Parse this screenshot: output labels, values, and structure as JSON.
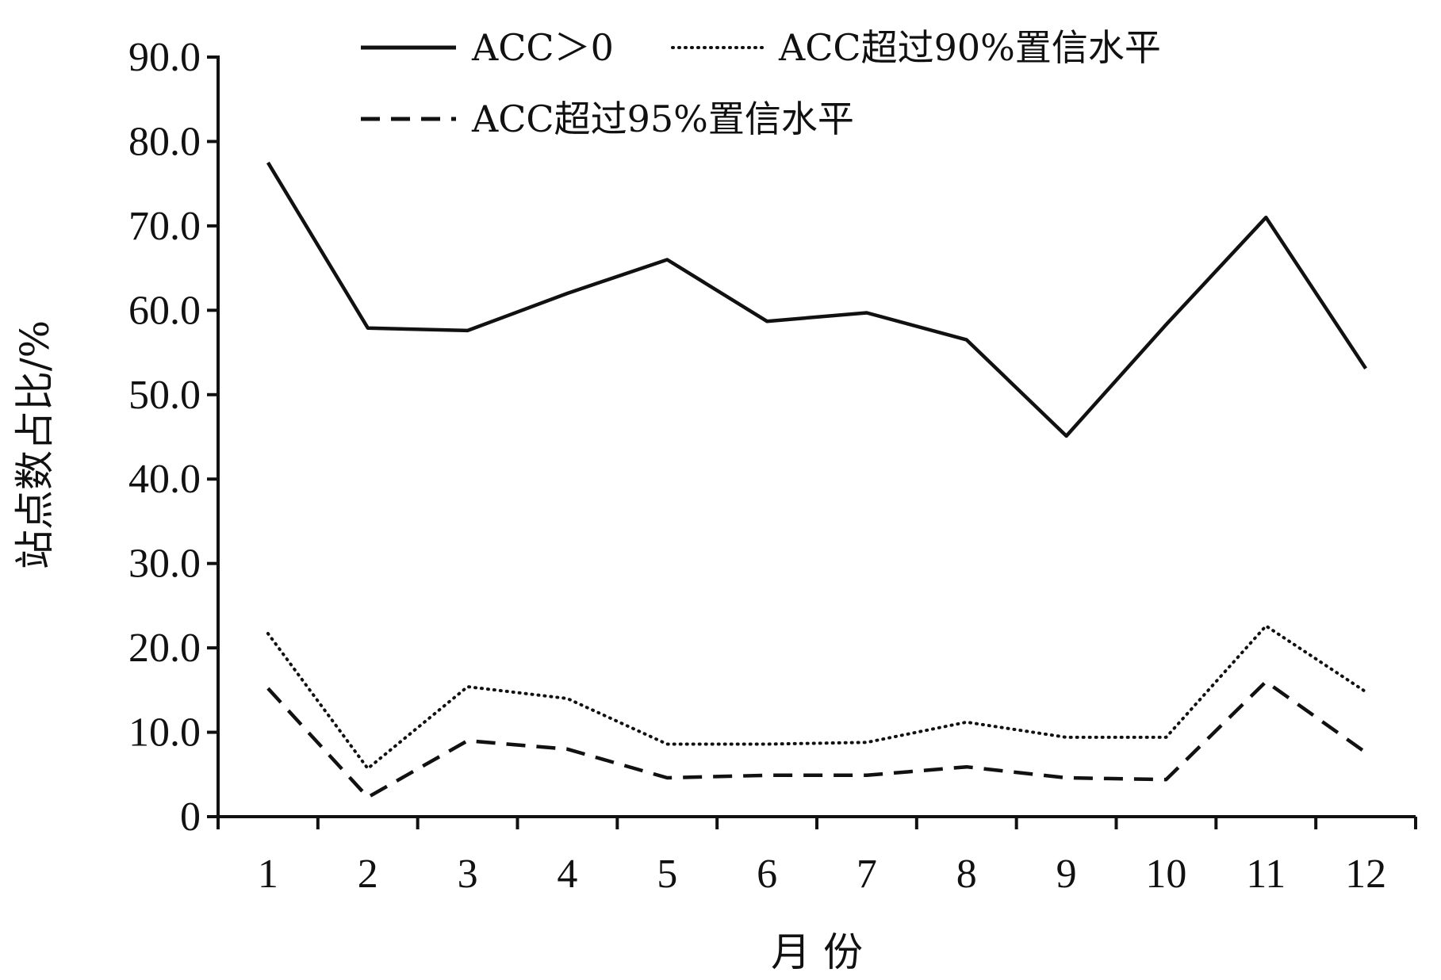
{
  "chart_data": {
    "type": "line",
    "xlabel": "月 份",
    "ylabel": "站点数占比/%",
    "categories": [
      "1",
      "2",
      "3",
      "4",
      "5",
      "6",
      "7",
      "8",
      "9",
      "10",
      "11",
      "12"
    ],
    "xlim": [
      0.5,
      12.5
    ],
    "ylim": [
      0,
      90
    ],
    "yticks": [
      0,
      10,
      20,
      30,
      40,
      50,
      60,
      70,
      80,
      90
    ],
    "ytick_labels": [
      "0",
      "10.0",
      "20.0",
      "30.0",
      "40.0",
      "50.0",
      "60.0",
      "70.0",
      "80.0",
      "90.0"
    ],
    "grid": false,
    "legend_position": "top",
    "series": [
      {
        "name": "ACC＞0",
        "line_style": "solid",
        "color": "#111111",
        "values": [
          77.5,
          57.9,
          57.6,
          62.0,
          66.0,
          58.7,
          59.7,
          56.5,
          45.1,
          58.3,
          71.0,
          53.1
        ]
      },
      {
        "name": "ACC超过90%置信水平",
        "line_style": "dotted",
        "color": "#111111",
        "values": [
          21.7,
          5.7,
          15.4,
          14.0,
          8.6,
          8.6,
          8.8,
          11.2,
          9.4,
          9.4,
          22.6,
          14.8
        ]
      },
      {
        "name": "ACC超过95%置信水平",
        "line_style": "dashed",
        "color": "#111111",
        "values": [
          15.2,
          2.3,
          9.0,
          8.0,
          4.6,
          4.9,
          4.9,
          5.9,
          4.6,
          4.4,
          16.0,
          7.6
        ]
      }
    ]
  }
}
